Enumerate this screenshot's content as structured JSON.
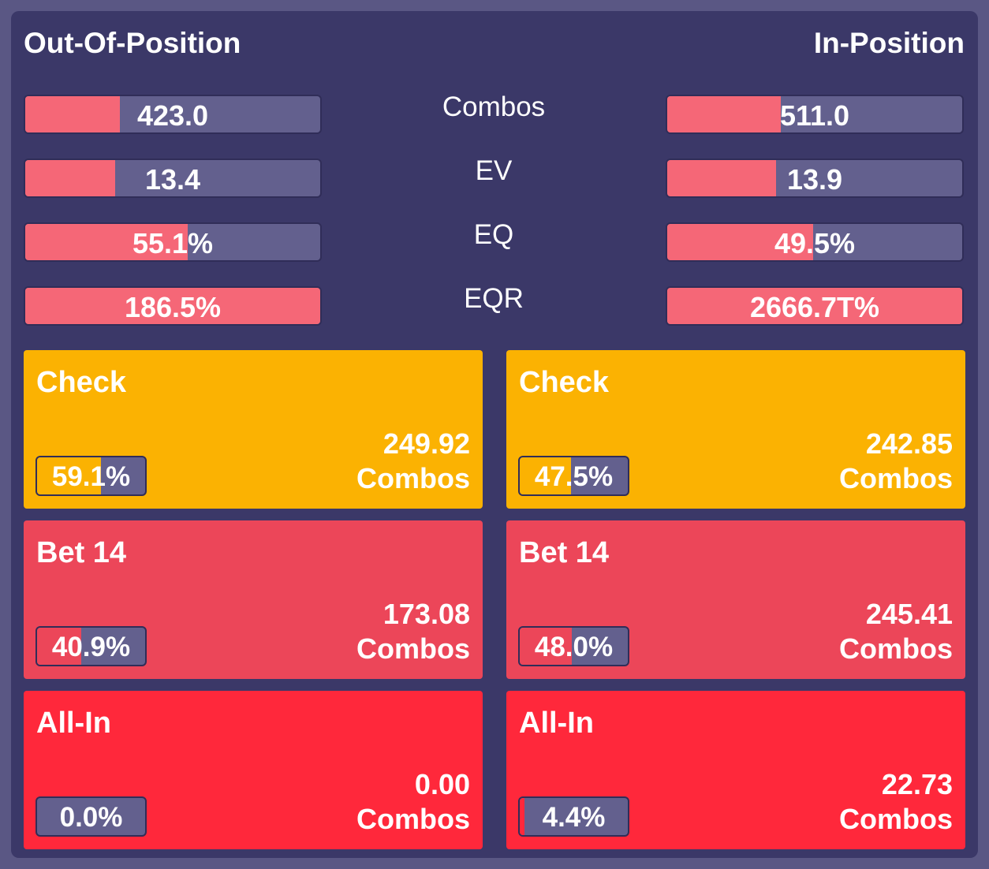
{
  "headers": {
    "oop": "Out-Of-Position",
    "ip": "In-Position"
  },
  "colors": {
    "panel_bg": "#3b3868",
    "bar_bg": "#63608e",
    "bar_fill": "#f56777",
    "check": "#fbb202",
    "bet": "#ec4659",
    "allin": "#ff283b"
  },
  "stats": [
    {
      "label": "Combos",
      "oop": {
        "value": "423.0",
        "fill": 0.32
      },
      "ip": {
        "value": "511.0",
        "fill": 0.385
      }
    },
    {
      "label": "EV",
      "oop": {
        "value": "13.4",
        "fill": 0.305
      },
      "ip": {
        "value": "13.9",
        "fill": 0.37
      }
    },
    {
      "label": "EQ",
      "oop": {
        "value": "55.1%",
        "fill": 0.551
      },
      "ip": {
        "value": "49.5%",
        "fill": 0.495
      }
    },
    {
      "label": "EQR",
      "oop": {
        "value": "186.5%",
        "fill": 1.0
      },
      "ip": {
        "value": "2666.7T%",
        "fill": 1.0
      }
    }
  ],
  "actions": {
    "oop": [
      {
        "name": "Check",
        "combos": "249.92",
        "combos_label": "Combos",
        "pct": "59.1%",
        "fill": 0.591,
        "color_key": "check"
      },
      {
        "name": "Bet 14",
        "combos": "173.08",
        "combos_label": "Combos",
        "pct": "40.9%",
        "fill": 0.409,
        "color_key": "bet"
      },
      {
        "name": "All-In",
        "combos": "0.00",
        "combos_label": "Combos",
        "pct": "0.0%",
        "fill": 0.0,
        "color_key": "allin"
      }
    ],
    "ip": [
      {
        "name": "Check",
        "combos": "242.85",
        "combos_label": "Combos",
        "pct": "47.5%",
        "fill": 0.475,
        "color_key": "check"
      },
      {
        "name": "Bet 14",
        "combos": "245.41",
        "combos_label": "Combos",
        "pct": "48.0%",
        "fill": 0.48,
        "color_key": "bet"
      },
      {
        "name": "All-In",
        "combos": "22.73",
        "combos_label": "Combos",
        "pct": "4.4%",
        "fill": 0.044,
        "color_key": "allin"
      }
    ]
  }
}
